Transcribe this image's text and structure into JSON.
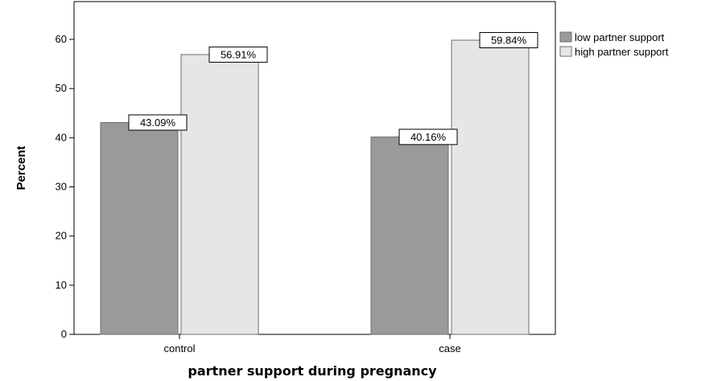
{
  "chart_data": {
    "type": "bar",
    "categories": [
      "control",
      "case"
    ],
    "series": [
      {
        "name": "low partner support",
        "values": [
          43.09,
          40.16
        ],
        "color": "#9a9a9a"
      },
      {
        "name": "high partner support",
        "values": [
          56.91,
          59.84
        ],
        "color": "#e6e6e6"
      }
    ],
    "data_labels": [
      [
        "43.09%",
        "40.16%"
      ],
      [
        "56.91%",
        "59.84%"
      ]
    ],
    "xlabel": "partner support during pregnancy",
    "ylabel": "Percent",
    "ylim": [
      0,
      60
    ],
    "y_ticks": [
      0,
      10,
      20,
      30,
      40,
      50,
      60
    ],
    "grid": false,
    "legend_position": "top-right",
    "bar_outline_color": "#6e6e6e",
    "data_label_border_color": "#000000"
  }
}
